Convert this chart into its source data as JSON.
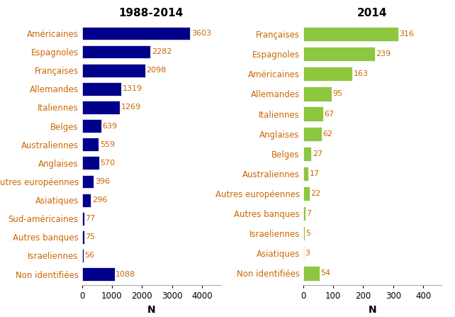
{
  "left": {
    "title": "1988-2014",
    "categories": [
      "Américaines",
      "Espagnoles",
      "Françaises",
      "Allemandes",
      "Italiennes",
      "Belges",
      "Australiennes",
      "Anglaises",
      "Autres européennes",
      "Asiatiques",
      "Sud-américaines",
      "Autres banques",
      "Israeliennes",
      "Non identifiées"
    ],
    "values": [
      3603,
      2282,
      2098,
      1319,
      1269,
      639,
      559,
      570,
      396,
      296,
      77,
      75,
      56,
      1088
    ],
    "color": "#00008B",
    "xlim": [
      0,
      4600
    ],
    "xticks": [
      0,
      1000,
      2000,
      3000,
      4000
    ]
  },
  "right": {
    "title": "2014",
    "categories": [
      "Françaises",
      "Espagnoles",
      "Américaines",
      "Allemandes",
      "Italiennes",
      "Anglaises",
      "Belges",
      "Australiennes",
      "Autres européennes",
      "Autres banques",
      "Israeliennes",
      "Asiatiques",
      "Non identifiées"
    ],
    "values": [
      316,
      239,
      163,
      95,
      67,
      62,
      27,
      17,
      22,
      7,
      5,
      3,
      54
    ],
    "color": "#8DC63F",
    "xlim": [
      0,
      460
    ],
    "xticks": [
      0,
      100,
      200,
      300,
      400
    ]
  },
  "xlabel": "N",
  "label_color": "#CC6600",
  "title_fontsize": 11,
  "label_fontsize": 8.5,
  "value_fontsize": 8,
  "axis_fontsize": 8.5,
  "bar_height": 0.72
}
